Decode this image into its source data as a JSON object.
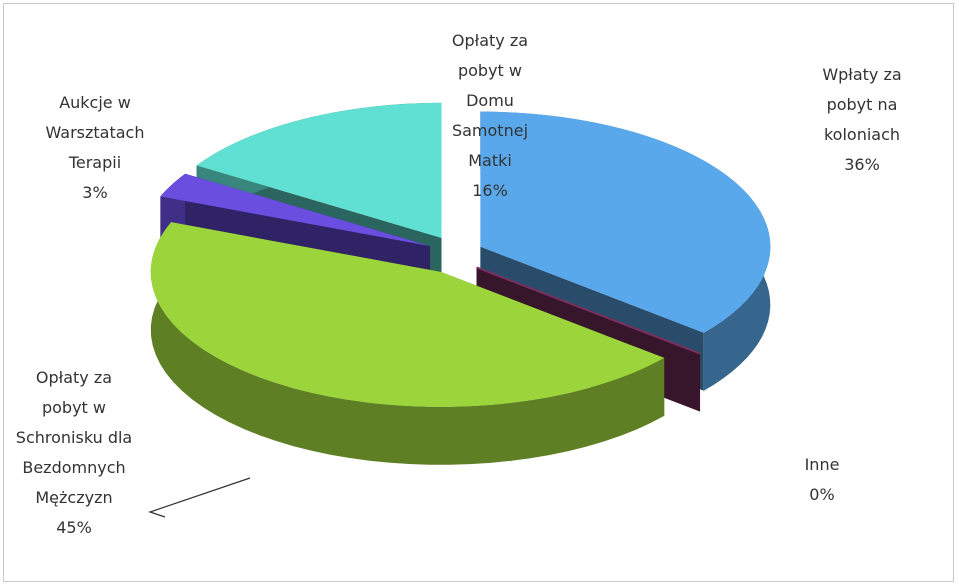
{
  "chart_data": {
    "type": "pie",
    "categories": [
      "Wpłaty za pobyt na koloniach",
      "Inne",
      "Opłaty za pobyt w Schronisku dla Bezdomnych Mężczyzn",
      "Aukcje w Warsztatach Terapii",
      "Opłaty za pobyt w Domu Samotnej Matki"
    ],
    "values": [
      36,
      0,
      45,
      3,
      16
    ],
    "value_labels": [
      "36%",
      "0%",
      "45%",
      "3%",
      "16%"
    ],
    "colors": [
      "#5aa8ec",
      "#7a2f5e",
      "#9cd43c",
      "#6a4ee0",
      "#5fe0d2"
    ]
  }
}
